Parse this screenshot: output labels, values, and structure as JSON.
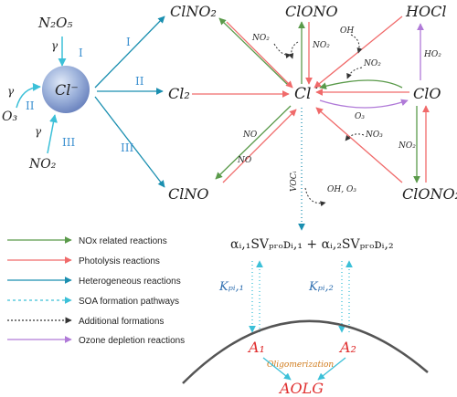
{
  "species": {
    "n2o5": "N₂O₅",
    "clno2_top": "ClNO₂",
    "clono": "ClONO",
    "hocl": "HOCl",
    "cl_minus": "Cl⁻",
    "cl2": "Cl₂",
    "cl_rad": "Cl˙",
    "clo": "ClO",
    "o3_left": "O₃",
    "no2_left": "NO₂",
    "clno_bottom": "ClNO",
    "clono2_bottom": "ClONO₂"
  },
  "labels": {
    "gamma1": "γ",
    "gamma2": "γ",
    "gamma3": "γ",
    "roman1_a": "I",
    "roman2_a": "II",
    "roman3_a": "III",
    "roman1_b": "I",
    "roman2_b": "II",
    "roman3_b": "III",
    "no2_a": "NO₂",
    "no2_b": "NO₂",
    "oh": "OH",
    "ho2": "HO₂",
    "no2_c": "NO₂",
    "o3_mid": "O₃",
    "no_a": "NO",
    "no_b": "NO",
    "no3": "NO₃",
    "no2_d": "NO₂",
    "voc": "VOCᵢ",
    "oh_o3": "OH, O₃"
  },
  "soa": {
    "expression": "αᵢ,₁SVₚᵣₒᴅᵢ,₁ + αᵢ,₂SVₚᵣₒᴅᵢ,₂",
    "kp1": "Kₚᵢ,₁",
    "kp2": "Kₚᵢ,₂",
    "a1": "A₁",
    "a2": "A₂",
    "oligomerization": "Oligomerization",
    "aolg": "AOLG"
  },
  "legend": [
    {
      "label": "NOx related reactions",
      "color": "#5a9a4a",
      "style": "solid"
    },
    {
      "label": "Photolysis reactions",
      "color": "#f06a6a",
      "style": "solid"
    },
    {
      "label": "Heterogeneous reactions",
      "color": "#1a8fb0",
      "style": "solid"
    },
    {
      "label": "SOA formation pathways",
      "color": "#3cc0d8",
      "style": "dotted-cross"
    },
    {
      "label": "Additional formations",
      "color": "#333333",
      "style": "dashed"
    },
    {
      "label": "Ozone depletion reactions",
      "color": "#b07ad8",
      "style": "solid"
    }
  ],
  "colors": {
    "nox": "#5a9a4a",
    "photolysis": "#f06a6a",
    "hetero": "#1a8fb0",
    "soa": "#3cc0d8",
    "additional": "#333333",
    "ozone": "#b07ad8"
  }
}
